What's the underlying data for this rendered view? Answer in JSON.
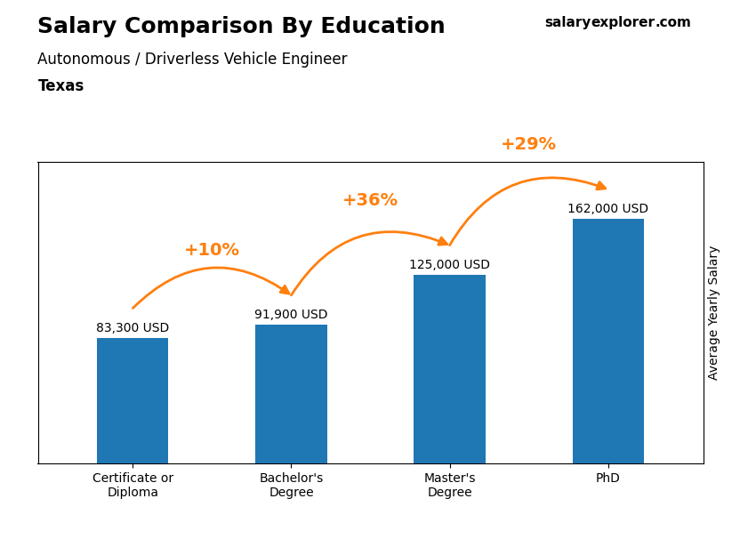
{
  "chart_data": {
    "type": "bar",
    "title": "Salary Comparison By Education",
    "subtitle": "Autonomous / Driverless Vehicle Engineer",
    "location": "Texas",
    "watermark": [
      "salary",
      "explorer",
      ".com"
    ],
    "y_label": "Average Yearly Salary",
    "categories": [
      "Certificate or\nDiploma",
      "Bachelor's\nDegree",
      "Master's\nDegree",
      "PhD"
    ],
    "values": [
      83300,
      91900,
      125000,
      162000
    ],
    "value_labels": [
      "83,300 USD",
      "91,900 USD",
      "125,000 USD",
      "162,000 USD"
    ],
    "data_labels": true,
    "annotations": [
      "+10%",
      "+36%",
      "+29%"
    ],
    "ylim": [
      0,
      200000
    ],
    "tick_labels": "x",
    "grid": false
  }
}
